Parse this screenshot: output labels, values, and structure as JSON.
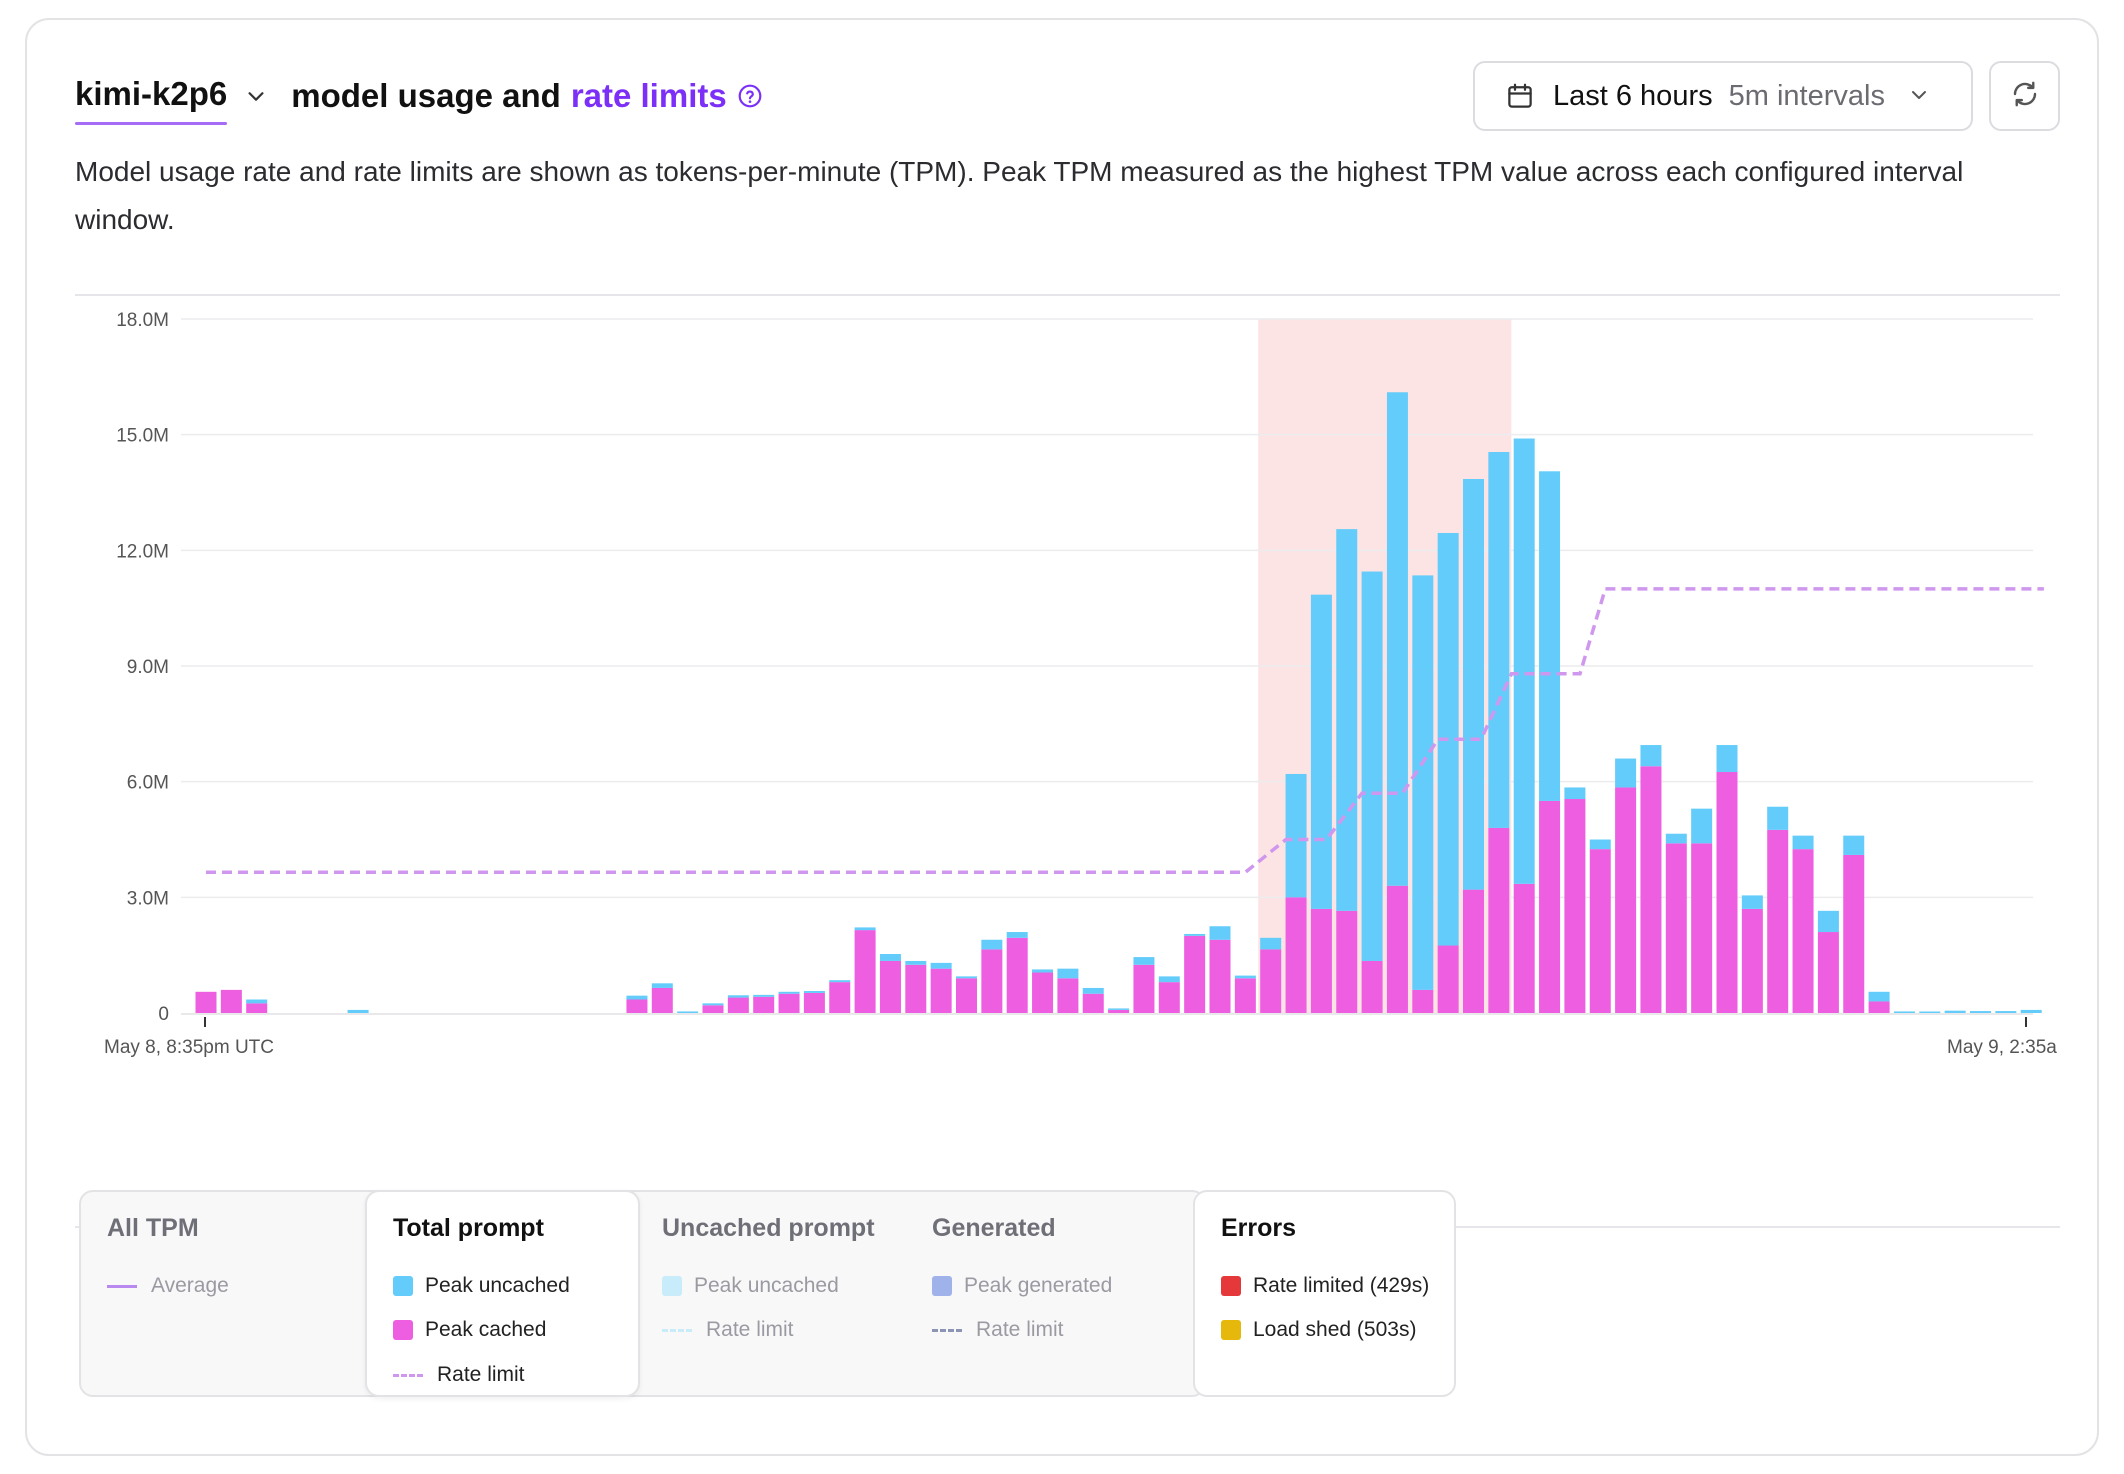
{
  "header": {
    "model_name": "kimi-k2p6",
    "title_middle": "model usage and",
    "title_link": "rate limits",
    "time_range": "Last 6 hours",
    "interval": "5m intervals",
    "description": "Model usage rate and rate limits are shown as tokens-per-minute (TPM). Peak TPM measured as the highest TPM value across each configured interval window."
  },
  "icons": {
    "model_dropdown": "chevron-down-icon",
    "help": "help-circle-icon",
    "calendar": "calendar-icon",
    "range_dropdown": "chevron-down-icon",
    "refresh": "refresh-icon"
  },
  "colors": {
    "peak_uncached": "#63ccfa",
    "peak_cached": "#ee5ee0",
    "rate_limit": "#cf98ee",
    "highlight": "#fde4e4",
    "accent": "#7b2ff7",
    "average": "#b88af0",
    "dim_uncached": "#c9ecfb",
    "peak_generated": "#9fb3ea",
    "generated_rate_limit": "#8c96b4",
    "rate_limited_429": "#e5383b",
    "load_shed_503": "#e5b80b"
  },
  "chart_data": {
    "type": "bar",
    "stacked": true,
    "ylim": [
      0,
      18000000
    ],
    "y_ticks": [
      {
        "value": 0,
        "label": "0"
      },
      {
        "value": 3000000,
        "label": "3.0M"
      },
      {
        "value": 6000000,
        "label": "6.0M"
      },
      {
        "value": 9000000,
        "label": "9.0M"
      },
      {
        "value": 12000000,
        "label": "12.0M"
      },
      {
        "value": 15000000,
        "label": "15.0M"
      },
      {
        "value": 18000000,
        "label": "18.0M"
      }
    ],
    "x_start_label": "May 8, 8:35pm UTC",
    "x_end_label": "May 9, 2:35a",
    "interval_count": 73,
    "highlight_intervals": [
      42,
      51
    ],
    "series": [
      {
        "name": "Peak cached",
        "values": [
          0.55,
          0.6,
          0.25,
          0,
          0,
          0,
          0,
          0,
          0,
          0,
          0,
          0,
          0,
          0,
          0,
          0,
          0,
          0.35,
          0.65,
          0,
          0.2,
          0.4,
          0.42,
          0.5,
          0.52,
          0.8,
          2.15,
          1.35,
          1.25,
          1.15,
          0.9,
          1.65,
          1.95,
          1.05,
          0.9,
          0.5,
          0.08,
          1.25,
          0.8,
          2.0,
          1.9,
          0.9,
          1.65,
          3.0,
          2.7,
          2.65,
          1.35,
          3.3,
          0.6,
          1.75,
          3.2,
          4.8,
          3.35,
          5.5,
          5.55,
          4.25,
          5.85,
          6.4,
          4.4,
          4.4,
          6.25,
          2.7,
          4.75,
          4.25,
          2.1,
          4.1,
          0.3,
          0,
          0,
          0,
          0,
          0,
          0
        ]
      },
      {
        "name": "Peak uncached",
        "values": [
          0,
          0,
          0.1,
          0,
          0,
          0,
          0.08,
          0,
          0,
          0,
          0,
          0,
          0,
          0,
          0,
          0,
          0,
          0.1,
          0.12,
          0.04,
          0.05,
          0.06,
          0.05,
          0.05,
          0.05,
          0.05,
          0.07,
          0.18,
          0.1,
          0.15,
          0.05,
          0.25,
          0.15,
          0.08,
          0.25,
          0.15,
          0.02,
          0.2,
          0.15,
          0.05,
          0.35,
          0.07,
          0.3,
          3.2,
          8.15,
          9.9,
          10.1,
          12.8,
          10.75,
          10.7,
          10.65,
          9.75,
          11.55,
          8.55,
          0.3,
          0.25,
          0.75,
          0.55,
          0.25,
          0.9,
          0.7,
          0.35,
          0.6,
          0.35,
          0.55,
          0.5,
          0.25,
          0.04,
          0.03,
          0.06,
          0.05,
          0.05,
          0.08
        ]
      }
    ],
    "rate_limit": [
      {
        "interval": 0,
        "value": 3.65
      },
      {
        "interval": 41,
        "value": 3.65
      },
      {
        "interval": 42.6,
        "value": 4.5
      },
      {
        "interval": 44.2,
        "value": 4.5
      },
      {
        "interval": 45.6,
        "value": 5.7
      },
      {
        "interval": 47.2,
        "value": 5.7
      },
      {
        "interval": 48.6,
        "value": 7.1
      },
      {
        "interval": 50.3,
        "value": 7.1
      },
      {
        "interval": 51.5,
        "value": 8.8
      },
      {
        "interval": 54.2,
        "value": 8.8
      },
      {
        "interval": 55.2,
        "value": 11.0
      },
      {
        "interval": 72.5,
        "value": 11.0
      }
    ],
    "value_unit": "million tokens per minute"
  },
  "legend": {
    "all_tpm": {
      "title": "All TPM",
      "items": [
        "Average"
      ]
    },
    "total_prompt": {
      "title": "Total prompt",
      "items": [
        "Peak uncached",
        "Peak cached",
        "Rate limit"
      ]
    },
    "uncached_prompt": {
      "title": "Uncached prompt",
      "items": [
        "Peak uncached",
        "Rate limit"
      ]
    },
    "generated": {
      "title": "Generated",
      "items": [
        "Peak generated",
        "Rate limit"
      ]
    },
    "errors": {
      "title": "Errors",
      "items": [
        "Rate limited (429s)",
        "Load shed (503s)"
      ]
    }
  }
}
